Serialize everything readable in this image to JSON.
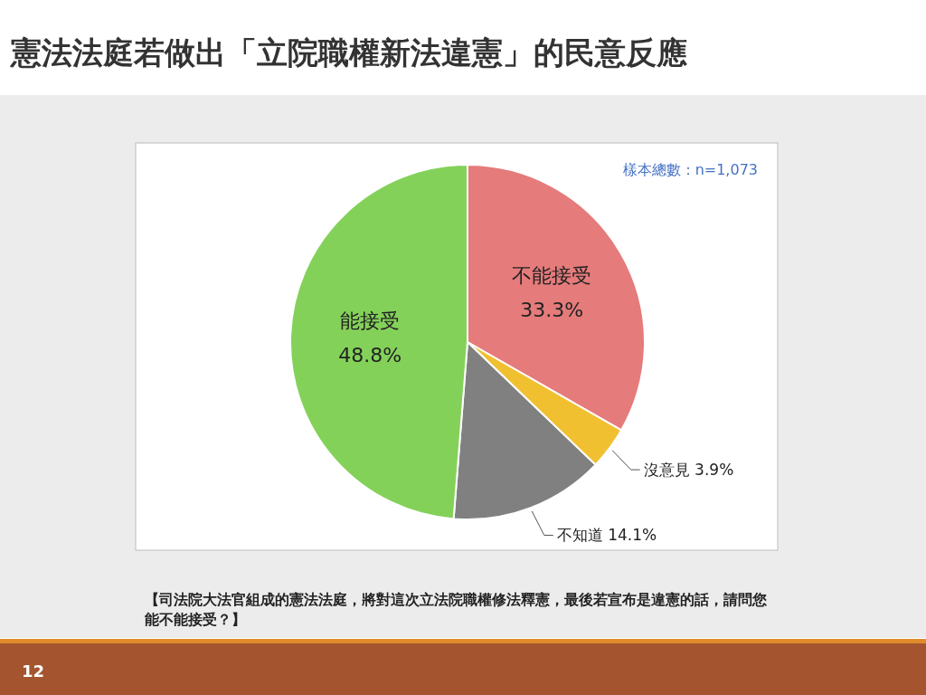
{
  "chart_data": {
    "type": "pie",
    "title": "憲法法庭若做出「立院職權新法違憲」的民意反應",
    "categories": [
      "不能接受",
      "沒意見",
      "不知道",
      "能接受"
    ],
    "values": [
      33.3,
      3.9,
      14.1,
      48.8
    ],
    "colors": [
      "#e57b7b",
      "#f0c030",
      "#808080",
      "#84d15a"
    ],
    "value_labels": [
      "33.3%",
      "3.9%",
      "14.1%",
      "48.8%"
    ],
    "annotations": [
      "樣本總數：n=1,073",
      "【司法院大法官組成的憲法法庭，將對這次立法院職權修法釋憲，最後若宣布是違憲的話，請問您能不能接受？】",
      "12"
    ]
  }
}
